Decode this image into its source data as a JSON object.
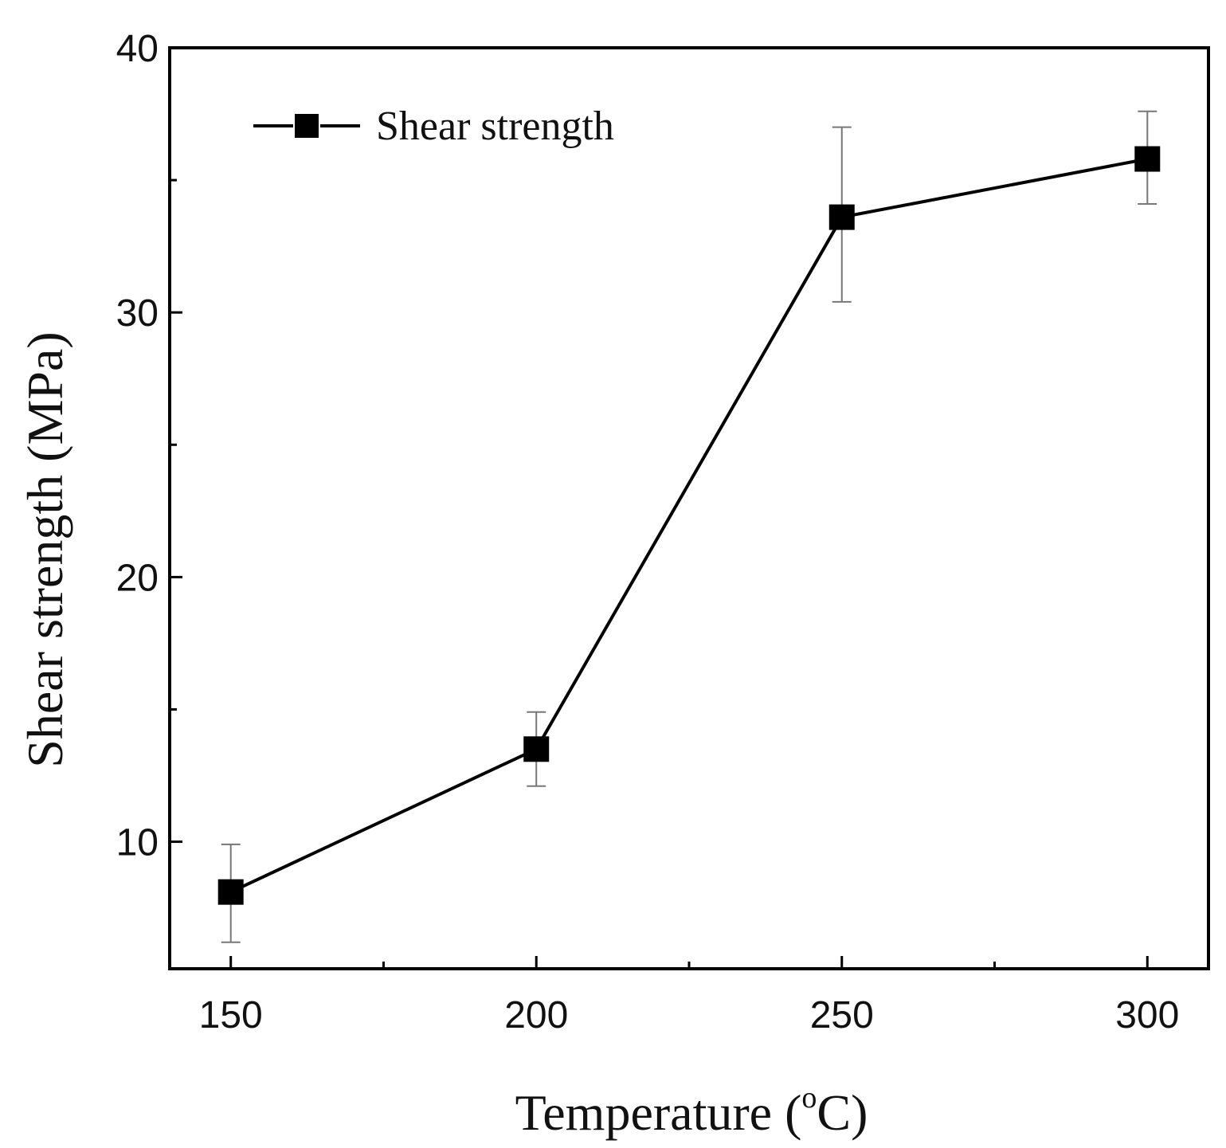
{
  "chart_data": {
    "type": "line",
    "title": "",
    "xlabel": "Temperature (",
    "xlabel_superscript": "o",
    "xlabel_suffix": "C)",
    "ylabel": "Shear strength (MPa)",
    "xlim": [
      140,
      310
    ],
    "ylim": [
      5.2,
      40
    ],
    "x_ticks": [
      150,
      200,
      250,
      300
    ],
    "x_minor_ticks": [
      175,
      225,
      275
    ],
    "y_ticks": [
      10,
      20,
      30,
      40
    ],
    "y_minor_ticks": [
      15,
      25,
      35
    ],
    "x_tick_labels": [
      "150",
      "200",
      "250",
      "300"
    ],
    "y_tick_labels": [
      "10",
      "20",
      "30",
      "40"
    ],
    "grid": false,
    "legend_position": "top-left",
    "series": [
      {
        "name": "Shear strength",
        "marker": "square",
        "x": [
          150,
          200,
          250,
          300
        ],
        "y": [
          8.1,
          13.5,
          33.6,
          35.8
        ],
        "error_plus": [
          1.8,
          1.4,
          3.4,
          1.8
        ],
        "error_minus": [
          1.9,
          1.4,
          3.2,
          1.7
        ]
      }
    ]
  },
  "colors": {
    "line": "#000000",
    "marker": "#000000",
    "error_bar": "#777777",
    "axis": "#000000"
  }
}
